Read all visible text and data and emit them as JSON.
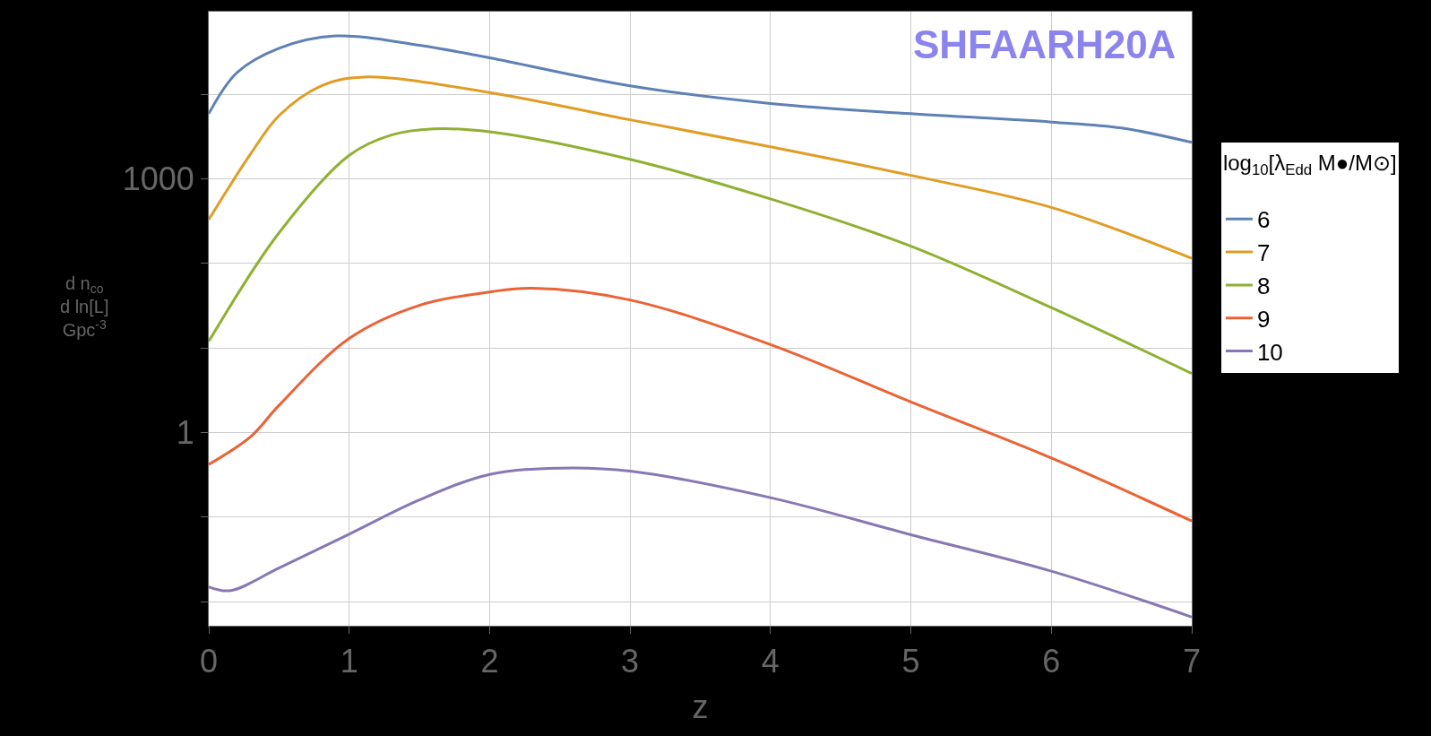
{
  "chart_data": {
    "type": "line",
    "xlabel": "z",
    "ylabel": "d n$_{co}$\nd ln[L]\nGpc$^{-3}$",
    "legend_title": "log$_{10}$[λ$_{Edd}$ M●/M⊙]",
    "annotations": [
      "SHFAARH20A"
    ],
    "log": "y",
    "grid": true,
    "legend": "right",
    "marker": "none",
    "line_style": "solid",
    "xlim": [
      0,
      7
    ],
    "xticks": [
      0,
      1,
      2,
      3,
      4,
      5,
      6,
      7
    ],
    "ylim": [
      0.0052,
      95000
    ],
    "yticks": [
      {
        "value": 0.01,
        "label": null
      },
      {
        "value": 0.1,
        "label": null
      },
      1,
      {
        "value": 10,
        "label": null
      },
      {
        "value": 100,
        "label": null
      },
      1000,
      {
        "value": 10000,
        "label": null
      }
    ],
    "series": [
      {
        "name": "6",
        "color": "#5e81b5",
        "x": [
          0,
          0.2,
          0.5,
          0.9,
          1.5,
          2,
          3,
          4,
          5,
          6,
          6.5,
          7
        ],
        "values": [
          5900,
          18000,
          35000,
          49000,
          38000,
          27000,
          12600,
          7800,
          5900,
          4700,
          4000,
          2700
        ]
      },
      {
        "name": "7",
        "color": "#e19c24",
        "x": [
          0,
          0.3,
          0.5,
          0.8,
          1.1,
          2,
          3,
          4,
          5,
          6,
          7
        ],
        "values": [
          330,
          2000,
          5600,
          12600,
          16000,
          10500,
          5000,
          2400,
          1100,
          460,
          115
        ]
      },
      {
        "name": "8",
        "color": "#8fb032",
        "x": [
          0,
          0.5,
          1,
          1.3,
          1.6,
          2,
          3,
          4,
          5,
          6,
          7
        ],
        "values": [
          12,
          230,
          1900,
          3300,
          3900,
          3600,
          1700,
          580,
          160,
          30,
          5
        ]
      },
      {
        "name": "9",
        "color": "#eb6235",
        "x": [
          0,
          0.3,
          0.5,
          1,
          1.5,
          2,
          2.3,
          3,
          4,
          5,
          6,
          7
        ],
        "values": [
          0.42,
          0.9,
          2.1,
          13,
          32,
          46,
          51,
          37,
          11,
          2.3,
          0.5,
          0.09
        ]
      },
      {
        "name": "10",
        "color": "#8778b3",
        "x": [
          0,
          0.15,
          0.5,
          1,
          1.5,
          2,
          2.5,
          3,
          4,
          5,
          6,
          7
        ],
        "values": [
          0.015,
          0.0135,
          0.025,
          0.063,
          0.16,
          0.32,
          0.38,
          0.35,
          0.17,
          0.062,
          0.023,
          0.0066
        ]
      }
    ]
  }
}
